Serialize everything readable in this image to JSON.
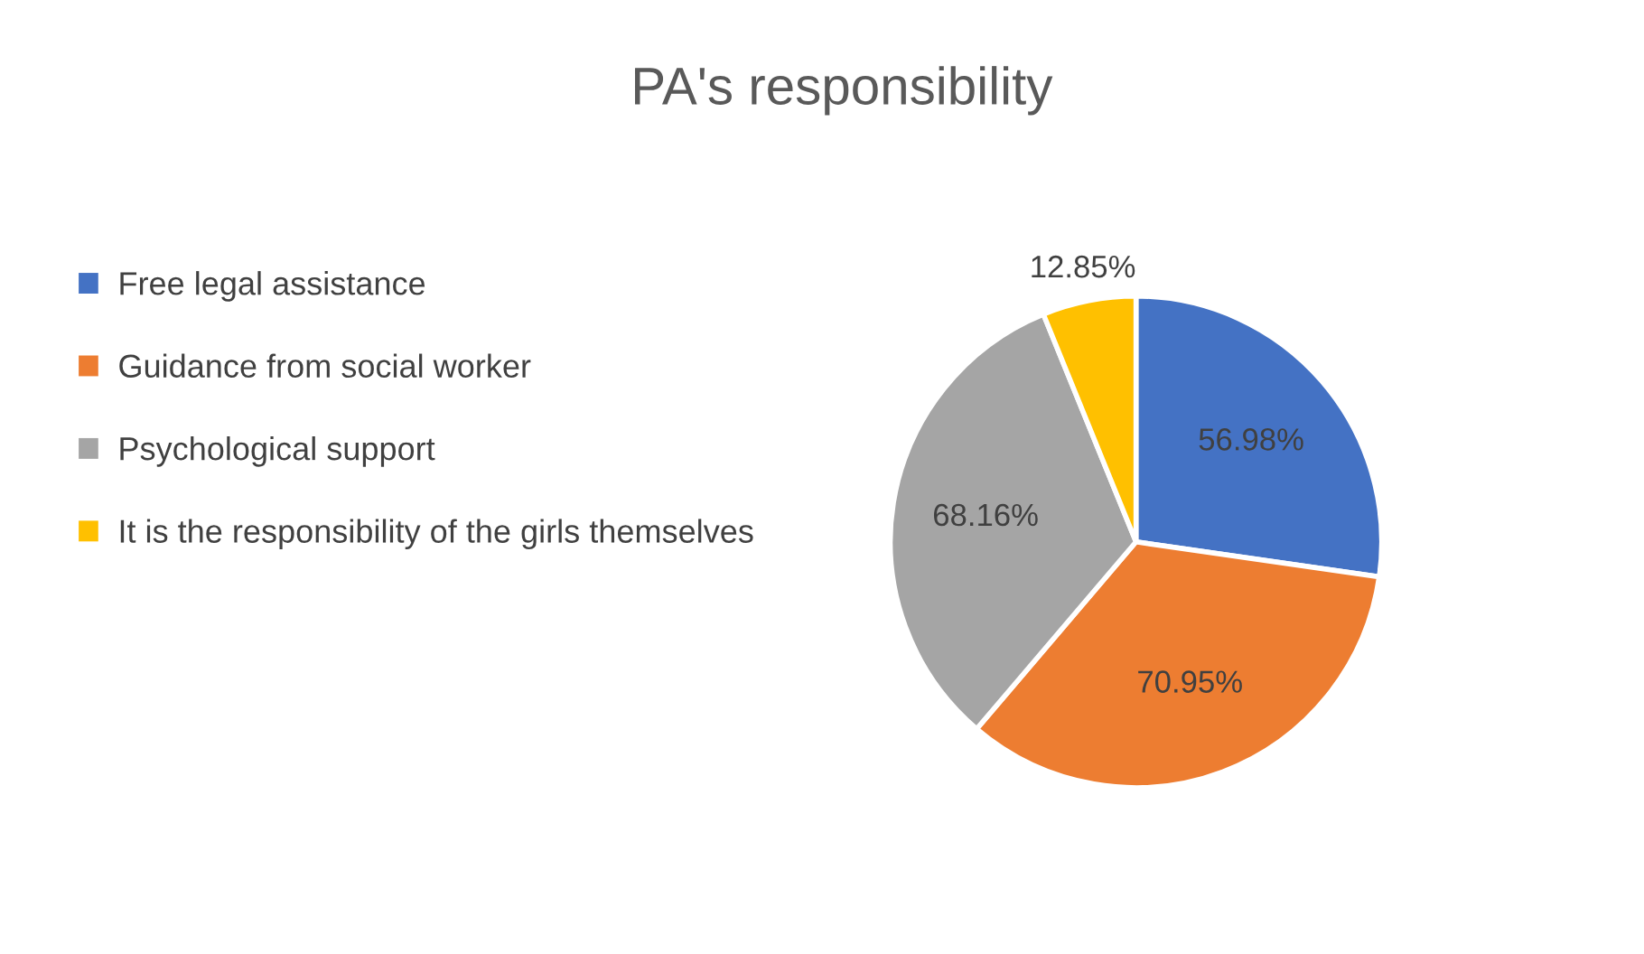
{
  "chart_data": {
    "type": "pie",
    "title": "PA's responsibility",
    "categories": [
      "Free legal assistance",
      "Guidance from social worker",
      "Psychological support",
      "It is the responsibility of the girls themselves"
    ],
    "values": [
      56.98,
      70.95,
      68.16,
      12.85
    ],
    "colors": [
      "#4472c4",
      "#ed7d31",
      "#a5a5a5",
      "#ffc000"
    ],
    "value_labels": [
      "56.98%",
      "70.95%",
      "68.16%",
      "12.85%"
    ],
    "legend": "left"
  }
}
